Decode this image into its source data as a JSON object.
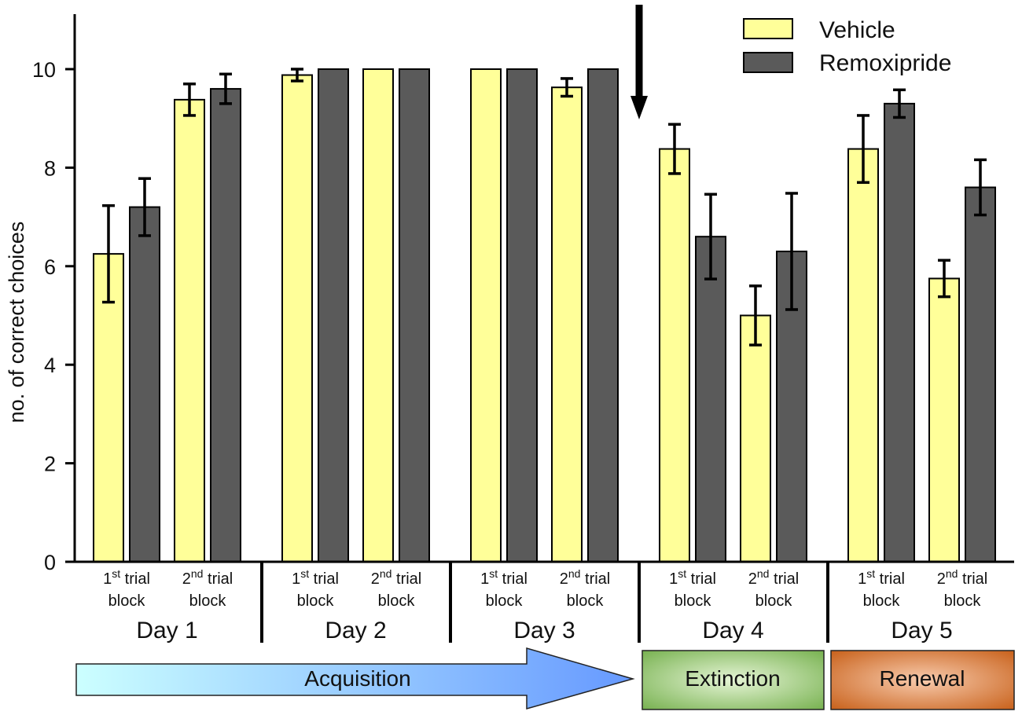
{
  "chart_data": {
    "type": "bar",
    "ylabel": "no. of correct choices",
    "ylim": [
      0,
      11
    ],
    "yticks": [
      0,
      2,
      4,
      6,
      8,
      10
    ],
    "colors": {
      "vehicle": "#ffff99",
      "remoxipride": "#5a5a5a"
    },
    "legend": {
      "position": "top-right",
      "entries": [
        "Vehicle",
        "Remoxipride"
      ]
    },
    "days": [
      {
        "label": "Day 1",
        "blocks": [
          {
            "ord": "1",
            "sup": "st",
            "word": "trial",
            "line2": "block",
            "vehicle": 6.25,
            "vehicle_err": 0.98,
            "remoxipride": 7.2,
            "remoxipride_err": 0.58
          },
          {
            "ord": "2",
            "sup": "nd",
            "word": "trial",
            "line2": "block",
            "vehicle": 9.38,
            "vehicle_err": 0.32,
            "remoxipride": 9.6,
            "remoxipride_err": 0.3
          }
        ]
      },
      {
        "label": "Day 2",
        "blocks": [
          {
            "ord": "1",
            "sup": "st",
            "word": "trial",
            "line2": "block",
            "vehicle": 9.88,
            "vehicle_err": 0.12,
            "remoxipride": 10,
            "remoxipride_err": 0
          },
          {
            "ord": "2",
            "sup": "nd",
            "word": "trial",
            "line2": "block",
            "vehicle": 10,
            "vehicle_err": 0,
            "remoxipride": 10,
            "remoxipride_err": 0
          }
        ]
      },
      {
        "label": "Day 3",
        "blocks": [
          {
            "ord": "1",
            "sup": "st",
            "word": "trial",
            "line2": "block",
            "vehicle": 10,
            "vehicle_err": 0,
            "remoxipride": 10,
            "remoxipride_err": 0
          },
          {
            "ord": "2",
            "sup": "nd",
            "word": "trial",
            "line2": "block",
            "vehicle": 9.63,
            "vehicle_err": 0.18,
            "remoxipride": 10,
            "remoxipride_err": 0
          }
        ]
      },
      {
        "label": "Day 4",
        "blocks": [
          {
            "ord": "1",
            "sup": "st",
            "word": "trial",
            "line2": "block",
            "vehicle": 8.38,
            "vehicle_err": 0.5,
            "remoxipride": 6.6,
            "remoxipride_err": 0.86
          },
          {
            "ord": "2",
            "sup": "nd",
            "word": "trial",
            "line2": "block",
            "vehicle": 5.0,
            "vehicle_err": 0.6,
            "remoxipride": 6.3,
            "remoxipride_err": 1.18
          }
        ]
      },
      {
        "label": "Day 5",
        "blocks": [
          {
            "ord": "1",
            "sup": "st",
            "word": "trial",
            "line2": "block",
            "vehicle": 8.38,
            "vehicle_err": 0.68,
            "remoxipride": 9.3,
            "remoxipride_err": 0.28
          },
          {
            "ord": "2",
            "sup": "nd",
            "word": "trial",
            "line2": "block",
            "vehicle": 5.75,
            "vehicle_err": 0.37,
            "remoxipride": 7.6,
            "remoxipride_err": 0.56
          }
        ]
      }
    ],
    "phases": [
      {
        "label": "Acquisition",
        "shape": "arrow",
        "colors": [
          "#ccffff",
          "#6699ff"
        ]
      },
      {
        "label": "Extinction",
        "shape": "box",
        "colors": [
          "#e6f5d6",
          "#70ad47"
        ]
      },
      {
        "label": "Renewal",
        "shape": "box",
        "colors": [
          "#f8cbad",
          "#c55a11"
        ]
      }
    ],
    "annotation": "arrow-down marker between Day 3 and Day 4"
  }
}
